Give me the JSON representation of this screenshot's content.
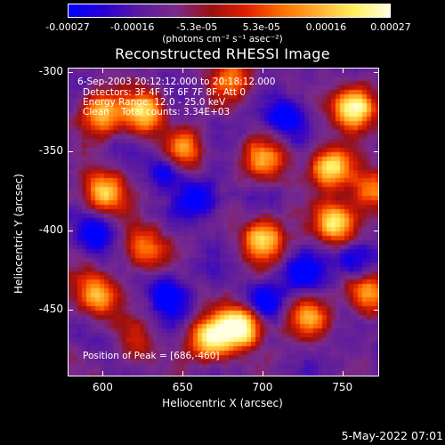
{
  "colorbar": {
    "ticks": [
      "-0.00027",
      "-0.00016",
      "-5.3e-05",
      "5.3e-05",
      "0.00016",
      "0.00027"
    ],
    "unit": "(photons cm⁻² s⁻¹ asec⁻²)"
  },
  "chart_data": {
    "type": "heatmap",
    "title": "Reconstructed RHESSI Image",
    "xlabel": "Heliocentric X (arcsec)",
    "ylabel": "Heliocentric Y (arcsec)",
    "xlim": [
      578,
      773
    ],
    "ylim": [
      -492,
      -297
    ],
    "x_ticks": [
      "600",
      "650",
      "700",
      "750"
    ],
    "y_ticks": [
      "-300",
      "-350",
      "-400",
      "-450"
    ],
    "colorscale": {
      "min": -0.00027,
      "max": 0.00027,
      "colors": [
        "#0000ff",
        "#2a00d0",
        "#5a1aa0",
        "#7a2a8a",
        "#9a1010",
        "#e02000",
        "#ff7000",
        "#ffb030",
        "#fff060",
        "#ffffe0"
      ]
    },
    "peak": [
      686,
      -460
    ],
    "hot_spots": [
      {
        "x": 686,
        "y": -460,
        "strength": 1.0
      },
      {
        "x": 667,
        "y": -468,
        "strength": 0.85
      },
      {
        "x": 757,
        "y": -322,
        "strength": 0.95
      },
      {
        "x": 742,
        "y": -360,
        "strength": 0.8
      },
      {
        "x": 745,
        "y": -395,
        "strength": 0.75
      },
      {
        "x": 700,
        "y": -405,
        "strength": 0.7
      },
      {
        "x": 598,
        "y": -325,
        "strength": 0.7
      },
      {
        "x": 625,
        "y": -325,
        "strength": 0.75
      },
      {
        "x": 600,
        "y": -375,
        "strength": 0.7
      },
      {
        "x": 650,
        "y": -350,
        "strength": 0.6
      },
      {
        "x": 700,
        "y": -355,
        "strength": 0.55
      },
      {
        "x": 595,
        "y": -440,
        "strength": 0.7
      },
      {
        "x": 625,
        "y": -410,
        "strength": 0.55
      },
      {
        "x": 615,
        "y": -470,
        "strength": 0.6
      },
      {
        "x": 728,
        "y": -455,
        "strength": 0.55
      },
      {
        "x": 765,
        "y": -440,
        "strength": 0.6
      },
      {
        "x": 680,
        "y": -305,
        "strength": 0.5
      },
      {
        "x": 768,
        "y": -375,
        "strength": 0.55
      }
    ],
    "cold_spots": [
      {
        "x": 595,
        "y": -402
      },
      {
        "x": 640,
        "y": -440
      },
      {
        "x": 660,
        "y": -380
      },
      {
        "x": 610,
        "y": -470
      },
      {
        "x": 700,
        "y": -445
      },
      {
        "x": 725,
        "y": -428
      },
      {
        "x": 640,
        "y": -360
      },
      {
        "x": 757,
        "y": -418
      },
      {
        "x": 715,
        "y": -328
      }
    ]
  },
  "annotations": {
    "time": "6-Sep-2003 20:12:12.000 to 20:18:12.000",
    "detectors": "Detectors: 3F 4F 5F 6F 7F 8F, Att 0",
    "energy": "Energy Range: 12.0 - 25.0 keV",
    "clean": "Clean    Total counts: 3.34E+03",
    "peak": "Position of Peak = [686,-460]"
  },
  "timestamp": "5-May-2022 07:01"
}
